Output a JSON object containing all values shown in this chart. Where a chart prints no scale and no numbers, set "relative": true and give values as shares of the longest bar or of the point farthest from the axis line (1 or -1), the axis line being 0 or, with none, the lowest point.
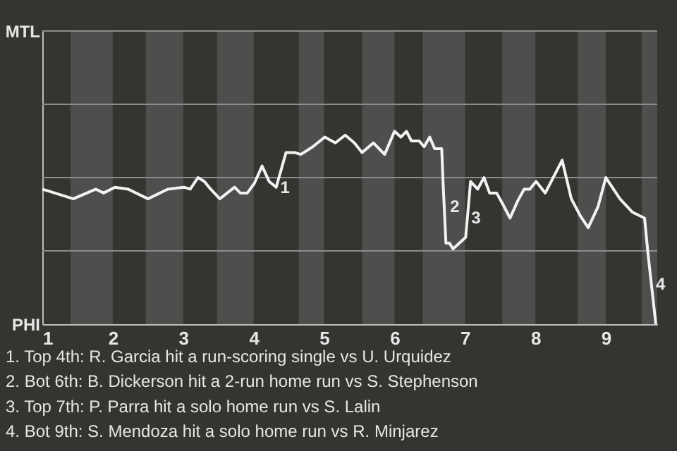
{
  "chart_data": {
    "type": "line",
    "x": [
      1,
      1.44,
      1.76,
      1.87,
      2.03,
      2.22,
      2.5,
      2.78,
      3.01,
      3.1,
      3.21,
      3.3,
      3.39,
      3.52,
      3.73,
      3.81,
      3.91,
      4.01,
      4.12,
      4.22,
      4.32,
      4.46,
      4.58,
      4.67,
      4.84,
      5.01,
      5.16,
      5.3,
      5.43,
      5.54,
      5.7,
      5.86,
      6,
      6.09,
      6.17,
      6.24,
      6.35,
      6.42,
      6.5,
      6.57,
      6.67,
      6.69,
      6.73,
      6.78,
      6.83,
      6.92,
      7.01,
      7.08,
      7.18,
      7.27,
      7.35,
      7.45,
      7.54,
      7.64,
      7.75,
      7.84,
      7.92,
      8.01,
      8.14,
      8.38,
      8.51,
      8.64,
      8.75,
      8.89,
      9,
      9.2,
      9.38,
      9.55,
      9.6,
      9.71
    ],
    "series": [
      {
        "color": "#f2f2f2",
        "values": [
          0.7,
          0.65,
          0.7,
          0.68,
          0.71,
          0.7,
          0.65,
          0.7,
          0.71,
          0.7,
          0.76,
          0.74,
          0.7,
          0.65,
          0.71,
          0.68,
          0.68,
          0.73,
          0.82,
          0.74,
          0.71,
          0.89,
          0.89,
          0.88,
          0.92,
          0.97,
          0.94,
          0.98,
          0.94,
          0.89,
          0.94,
          0.88,
          1,
          0.97,
          1,
          0.95,
          0.95,
          0.92,
          0.97,
          0.91,
          0.91,
          0.73,
          0.42,
          0.42,
          0.39,
          0.42,
          0.45,
          0.74,
          0.7,
          0.76,
          0.68,
          0.68,
          0.62,
          0.55,
          0.64,
          0.7,
          0.7,
          0.74,
          0.68,
          0.85,
          0.65,
          0.56,
          0.5,
          0.61,
          0.76,
          0.65,
          0.58,
          0.55,
          0.36,
          0
        ]
      }
    ],
    "relative": true,
    "xlim": [
      1,
      9.73
    ],
    "xticks": [
      1,
      2,
      3,
      4,
      5,
      6,
      7,
      8,
      9
    ],
    "ref_lines": [
      {
        "axis": "y",
        "value": 0.38,
        "color": "#8c8c8c"
      },
      {
        "axis": "y",
        "value": 0.76,
        "color": "#8c8c8c"
      },
      {
        "axis": "y",
        "value": 1.14,
        "color": "#8c8c8c"
      }
    ],
    "line_style": "solid",
    "bands": [
      {
        "axis": "x",
        "from": 1.4,
        "to": 2,
        "color": "#4f4e4c"
      },
      {
        "axis": "x",
        "from": 2.47,
        "to": 3,
        "color": "#4f4e4c"
      },
      {
        "axis": "x",
        "from": 3.48,
        "to": 4,
        "color": "#4f4e4c"
      },
      {
        "axis": "x",
        "from": 4.64,
        "to": 5,
        "color": "#4f4e4c"
      },
      {
        "axis": "x",
        "from": 5.54,
        "to": 6,
        "color": "#4f4e4c"
      },
      {
        "axis": "x",
        "from": 6.4,
        "to": 7,
        "color": "#4f4e4c"
      },
      {
        "axis": "x",
        "from": 7.53,
        "to": 8,
        "color": "#4f4e4c"
      },
      {
        "axis": "x",
        "from": 8.6,
        "to": 9,
        "color": "#4f4e4c"
      },
      {
        "axis": "x",
        "from": 9.51,
        "to": 9.73,
        "color": "#4f4e4c"
      }
    ],
    "annotations": [
      {
        "text": "1",
        "x": 4.32,
        "y": 0.71
      },
      {
        "text": "2",
        "x": 6.73,
        "y": 0.61
      },
      {
        "text": "3",
        "x": 7.03,
        "y": 0.55
      },
      {
        "text": "4",
        "x": 9.65,
        "y": 0.21
      },
      "MTL",
      "PHI",
      "1. Top 4th: R. Garcia hit a run-scoring single vs U. Urquidez",
      "2. Bot 6th: B. Dickerson hit a 2-run home run vs S. Stephenson",
      "3. Top 7th: P. Parra hit a solo home run vs S. Lalin",
      "4. Bot 9th: S. Mendoza hit a solo home run vs R. Minjarez"
    ]
  }
}
